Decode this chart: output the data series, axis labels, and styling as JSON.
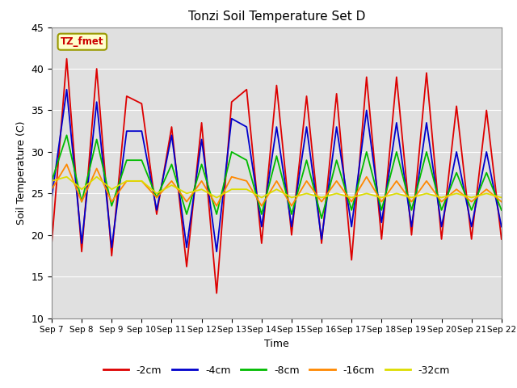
{
  "title": "Tonzi Soil Temperature Set D",
  "xlabel": "Time",
  "ylabel": "Soil Temperature (C)",
  "ylim": [
    10,
    45
  ],
  "x_tick_labels": [
    "Sep 7",
    "Sep 8",
    "Sep 9",
    "Sep 10",
    "Sep 11",
    "Sep 12",
    "Sep 13",
    "Sep 14",
    "Sep 15",
    "Sep 16",
    "Sep 17",
    "Sep 18",
    "Sep 19",
    "Sep 20",
    "Sep 21",
    "Sep 22"
  ],
  "series_colors": {
    "-2cm": "#dd0000",
    "-4cm": "#0000cc",
    "-8cm": "#00bb00",
    "-16cm": "#ff8800",
    "-32cm": "#dddd00"
  },
  "annotation_text": "TZ_fmet",
  "background_color": "#e0e0e0",
  "outer_background": "#ffffff",
  "peaks_2cm": [
    19.0,
    41.2,
    18.0,
    40.0,
    17.5,
    36.7,
    35.8,
    22.5,
    33.0,
    16.2,
    33.5,
    13.0,
    36.0,
    37.5,
    19.0,
    38.0,
    20.0,
    36.7,
    19.0,
    37.0,
    17.0,
    39.0,
    19.5,
    39.0,
    20.0,
    39.5,
    19.5,
    35.5,
    19.5,
    35.0,
    19.5
  ],
  "peaks_4cm": [
    24.5,
    37.5,
    19.0,
    36.0,
    18.5,
    32.5,
    32.5,
    23.0,
    32.0,
    18.5,
    31.5,
    18.0,
    34.0,
    33.0,
    21.0,
    33.0,
    21.0,
    33.0,
    19.5,
    33.0,
    21.0,
    35.0,
    21.5,
    33.5,
    21.0,
    33.5,
    21.0,
    30.0,
    21.0,
    30.0,
    21.0
  ],
  "peaks_8cm": [
    26.5,
    32.0,
    24.0,
    31.5,
    23.5,
    29.0,
    29.0,
    24.5,
    28.5,
    22.5,
    28.5,
    22.5,
    30.0,
    29.0,
    22.5,
    29.5,
    22.5,
    29.0,
    22.0,
    29.0,
    23.0,
    30.0,
    23.0,
    30.0,
    23.0,
    30.0,
    23.0,
    27.5,
    23.0,
    27.5,
    23.0
  ],
  "peaks_16cm": [
    25.5,
    28.5,
    24.0,
    28.0,
    24.0,
    26.5,
    26.5,
    24.5,
    26.5,
    24.0,
    26.5,
    23.5,
    27.0,
    26.5,
    23.5,
    26.5,
    23.5,
    26.5,
    24.0,
    26.5,
    24.0,
    27.0,
    24.0,
    26.5,
    24.0,
    26.5,
    24.0,
    25.5,
    24.0,
    25.5,
    24.0
  ],
  "peaks_32cm": [
    26.5,
    27.0,
    25.5,
    27.0,
    25.5,
    26.5,
    26.5,
    25.0,
    26.0,
    25.0,
    25.5,
    24.5,
    25.5,
    25.5,
    24.5,
    25.5,
    24.5,
    25.0,
    24.5,
    25.0,
    24.5,
    25.0,
    24.5,
    25.0,
    24.5,
    25.0,
    24.5,
    25.0,
    24.5,
    25.0,
    24.5
  ]
}
